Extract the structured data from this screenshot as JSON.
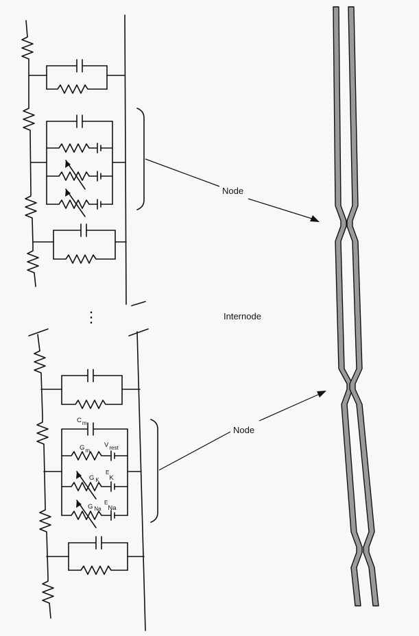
{
  "labels": {
    "node_upper": "Node",
    "node_lower": "Node",
    "internode": "Internode",
    "ellipsis": "⋮"
  },
  "components": {
    "cm_main": "C",
    "cm_sub": "m",
    "gm_main": "G",
    "gm_sub": "m",
    "vrest_main": "V",
    "vrest_sub": "rest",
    "gk_main": "G",
    "gk_sub": "K",
    "ek_main": "E",
    "ek_sub": "K",
    "gna_main": "G",
    "gna_sub": "Na",
    "ena_main": "E",
    "ena_sub": "Na"
  },
  "colors": {
    "background": "#f7f8fa",
    "ink": "#111111",
    "myelin": "#9a9a9a"
  }
}
